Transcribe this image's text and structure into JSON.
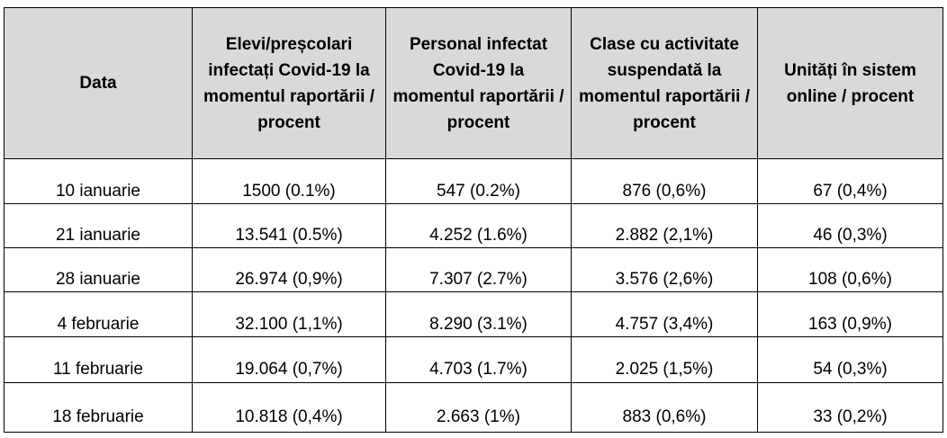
{
  "table": {
    "headers": [
      "Data",
      "Elevi/preșcolari infectați Covid-19 la momentul raportării / procent",
      "Personal infectat Covid-19 la momentul raportării / procent",
      "Clase cu activitate suspendată la momentul raportării / procent",
      "Unități în sistem online / procent"
    ],
    "rows": [
      [
        "10 ianuarie",
        "1500 (0.1%)",
        "547 (0.2%)",
        "876 (0,6%)",
        "67 (0,4%)"
      ],
      [
        "21 ianuarie",
        "13.541 (0.5%)",
        "4.252 (1.6%)",
        "2.882 (2,1%)",
        "46 (0,3%)"
      ],
      [
        "28 ianuarie",
        "26.974 (0,9%)",
        "7.307 (2.7%)",
        "3.576 (2,6%)",
        "108 (0,6%)"
      ],
      [
        "4 februarie",
        "32.100 (1,1%)",
        "8.290 (3.1%)",
        "4.757 (3,4%)",
        "163 (0,9%)"
      ],
      [
        "11 februarie",
        "19.064 (0,7%)",
        "4.703 (1.7%)",
        "2.025 (1,5%)",
        "54 (0,3%)"
      ],
      [
        "18 februarie",
        "10.818 (0,4%)",
        "2.663 (1%)",
        "883 (0,6%)",
        "33 (0,2%)"
      ]
    ]
  }
}
